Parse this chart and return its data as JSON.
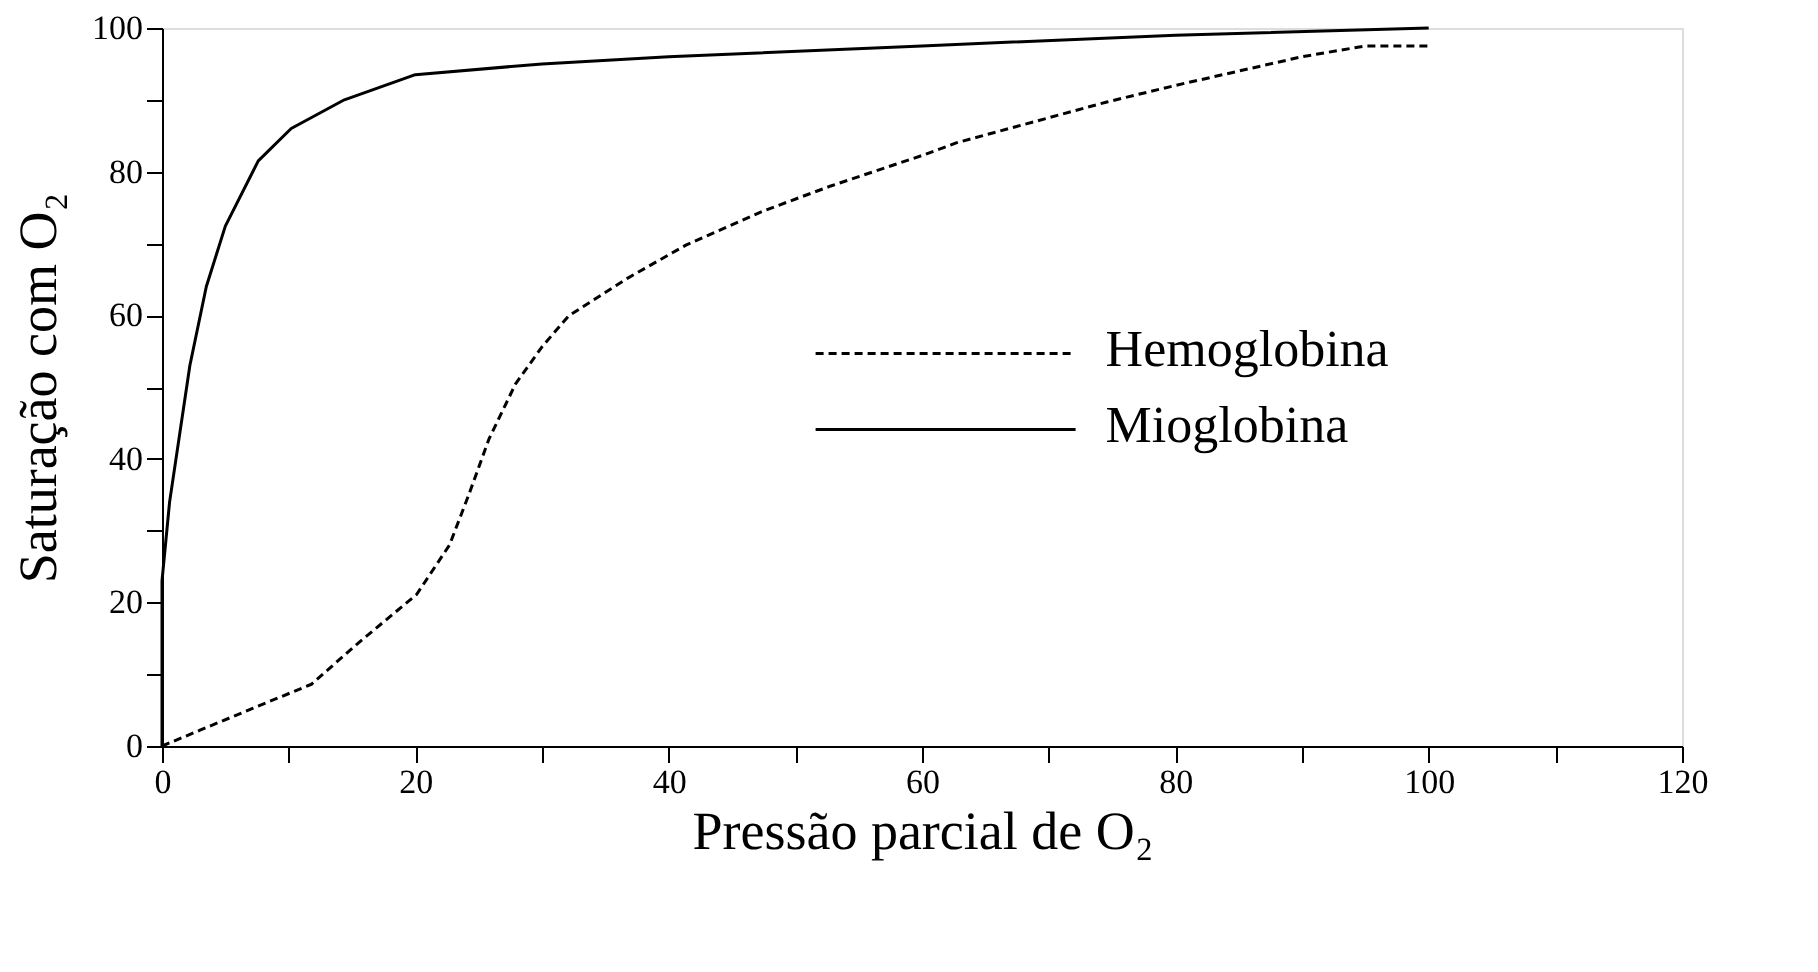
{
  "chart_data": {
    "type": "line",
    "xlabel": "Pressão parcial de O₂",
    "ylabel": "Saturação com O₂",
    "xlim": [
      0,
      120
    ],
    "ylim": [
      0,
      100
    ],
    "xticks": [
      0,
      {
        "value": 10,
        "label": null
      },
      20,
      {
        "value": 30,
        "label": null
      },
      40,
      {
        "value": 50,
        "label": null
      },
      60,
      {
        "value": 70,
        "label": null
      },
      80,
      {
        "value": 90,
        "label": null
      },
      100,
      {
        "value": 110,
        "label": null
      },
      120
    ],
    "yticks": [
      0,
      {
        "value": 10,
        "label": null
      },
      20,
      {
        "value": 30,
        "label": null
      },
      40,
      {
        "value": 50,
        "label": null
      },
      60,
      {
        "value": 70,
        "label": null
      },
      80,
      {
        "value": 90,
        "label": null
      },
      100
    ],
    "grid": false,
    "legend": "right",
    "marker": "none",
    "series": [
      {
        "name": "Hemoglobina",
        "color": "#000000",
        "line_style": "dashed",
        "x": [
          0,
          3,
          7.1,
          11.8,
          15.4,
          20.1,
          22.7,
          24.2,
          25.8,
          27.9,
          30,
          32.1,
          36.7,
          41.4,
          47.6,
          52.8,
          60.1,
          62.7,
          74.6,
          80,
          90,
          95,
          100
        ],
        "values": [
          0,
          2.2,
          5.2,
          8.6,
          14.2,
          21.1,
          28,
          34.9,
          42.7,
          50.4,
          55.6,
          59.9,
          65.1,
          69.8,
          74.6,
          78,
          82.3,
          84,
          89.7,
          92,
          96,
          97.5,
          97.5
        ]
      },
      {
        "name": "Mioglobina",
        "color": "#000000",
        "line_style": "solid",
        "x": [
          0,
          0,
          0.6,
          2.2,
          3.5,
          5,
          7.6,
          10.2,
          14.4,
          20,
          30,
          40,
          60,
          80,
          100
        ],
        "values": [
          0,
          23,
          34,
          53,
          64,
          72.4,
          81.5,
          86,
          90,
          93.5,
          95,
          96,
          97.5,
          99,
          100
        ]
      }
    ]
  }
}
